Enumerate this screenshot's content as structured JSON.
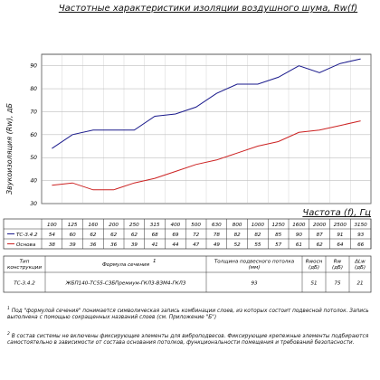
{
  "chart_data": {
    "type": "line",
    "title": "Частотные характеристики изоляции воздушного шума, Rw(f)",
    "xlabel": "Частота (f), Гц",
    "ylabel": "Звукоизоляция (Rw), дБ",
    "ylim": [
      30,
      95
    ],
    "yticks": [
      30,
      40,
      50,
      60,
      70,
      80,
      90
    ],
    "grid": true,
    "categories": [
      "100",
      "125",
      "160",
      "200",
      "250",
      "315",
      "400",
      "500",
      "630",
      "800",
      "1000",
      "1250",
      "1600",
      "2000",
      "2500",
      "3150"
    ],
    "series": [
      {
        "name": "ТС-3.4.2",
        "color": "#1a1a8c",
        "values": [
          54,
          60,
          62,
          62,
          62,
          68,
          69,
          72,
          78,
          82,
          82,
          85,
          90,
          87,
          91,
          93
        ]
      },
      {
        "name": "Основа",
        "color": "#cc2222",
        "values": [
          38,
          39,
          36,
          36,
          39,
          41,
          44,
          47,
          49,
          52,
          55,
          57,
          61,
          62,
          64,
          66
        ]
      }
    ]
  },
  "freq_header": "",
  "table": {
    "headers": {
      "type": "Тип конструкции",
      "formula": "Формула сечения",
      "formula_sup": "1",
      "thickness": "Толщина подвесного потолка (мм)",
      "rwbase": "Rwосн (дБ)",
      "rw": "Rw (дБ)",
      "drw": "ΔLw (дБ)"
    },
    "row": {
      "type": "ТС-3.4.2",
      "formula": "ЖБП140-ТС55-СЗБПремиум-ГКЛЗ-ВЗМ4-ГКЛЗ",
      "thickness": "93",
      "rwbase": "51",
      "rw": "75",
      "drw": "21"
    }
  },
  "notes": [
    {
      "num": "1",
      "text": "Под \"формулой сечения\" понимается символическая запись комбинации слоев, из которых состоит подвесной потолок. Запись выполнена с помощью сокращенных названий слоев (см. Приложение \"Б\")"
    },
    {
      "num": "2",
      "text": "В состав системы не включены фиксирующие элементы для виброподвесов. Фиксирующие крепежные элементы подбираются самостоятельно в зависимости от состава основания потолков, функциональности помещения и требований безопасности."
    }
  ]
}
